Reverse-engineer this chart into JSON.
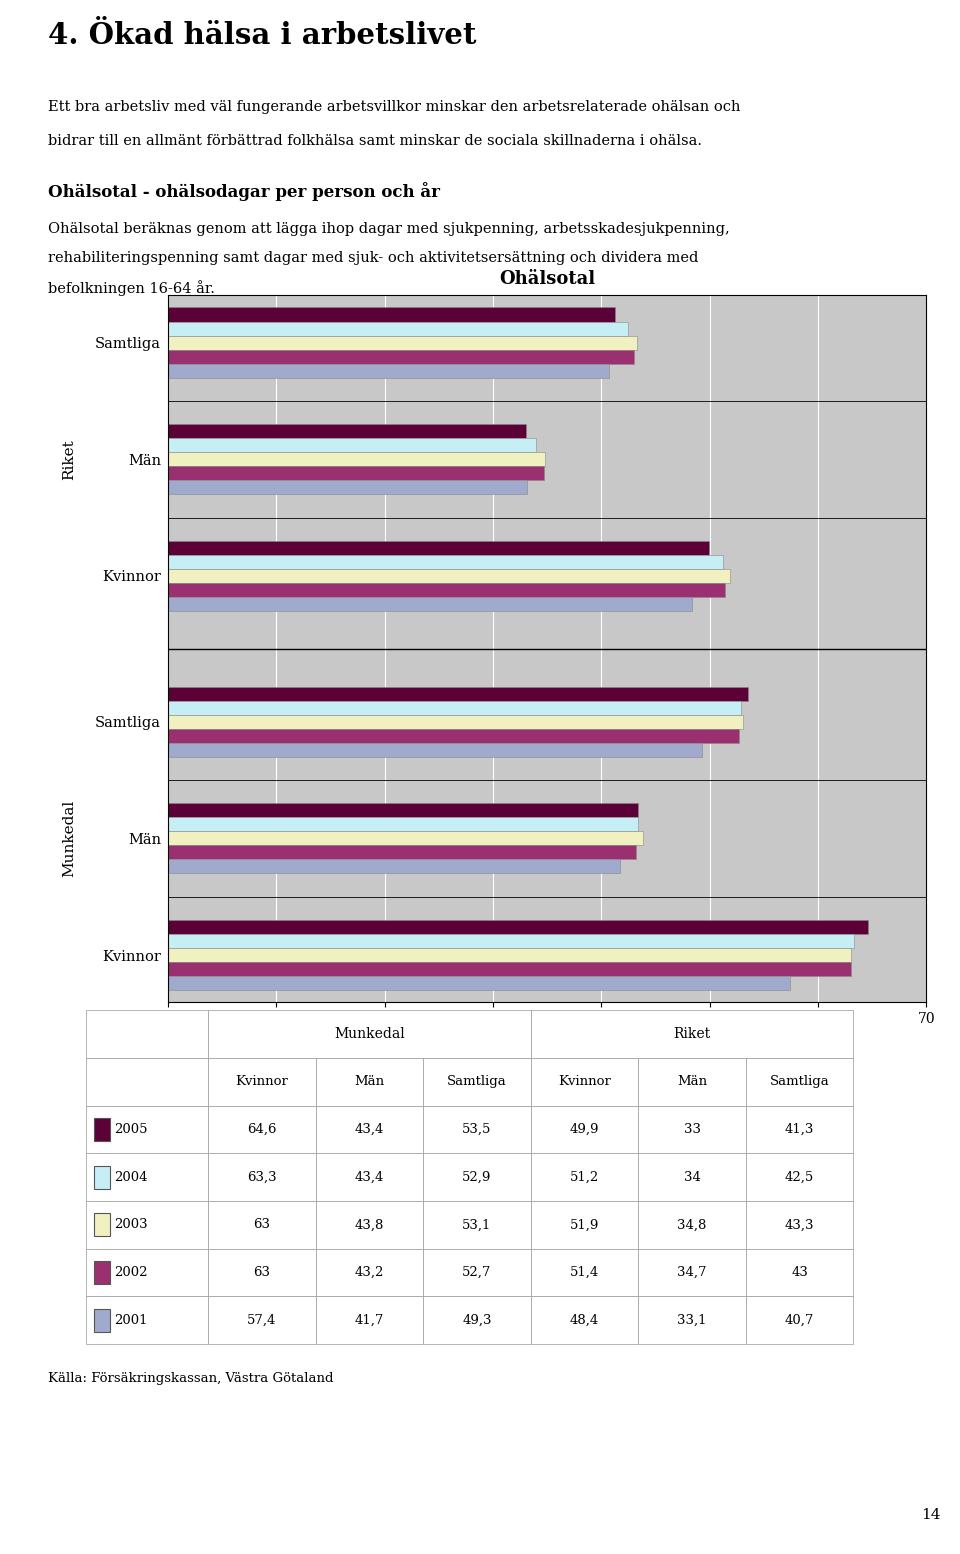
{
  "title": "4. Ökad hälsa i arbetslivet",
  "subtitle1": "Ett bra arbetsliv med väl fungerande arbetsvillkor minskar den arbetsrelaterade ohälsan och",
  "subtitle2": "bidrar till en allmänt förbättrad folkhälsa samt minskar de sociala skillnaderna i ohälsa.",
  "section_title": "Ohälsotal - ohälsodagar per person och år",
  "section_text1": "Ohälsotal beräknas genom att lägga ihop dagar med sjukpenning, arbetsskadesjukpenning,",
  "section_text2": "rehabiliteringspenning samt dagar med sjuk- och aktivitetsersättning och dividera med",
  "section_text3": "befolkningen 16-64 år.",
  "chart_title": "Ohälsotal",
  "years": [
    "2005",
    "2004",
    "2003",
    "2002",
    "2001"
  ],
  "color_2005": "#5C0038",
  "color_2004": "#C5EEF5",
  "color_2003": "#F0F0C0",
  "color_2002": "#9B3070",
  "color_2001": "#A0AACC",
  "data_Riket_Samtliga": [
    41.3,
    42.5,
    43.3,
    43.0,
    40.7
  ],
  "data_Riket_Man": [
    33.0,
    34.0,
    34.8,
    34.7,
    33.1
  ],
  "data_Riket_Kvinnor": [
    49.9,
    51.2,
    51.9,
    51.4,
    48.4
  ],
  "data_Munkedal_Samtliga": [
    53.5,
    52.9,
    53.1,
    52.7,
    49.3
  ],
  "data_Munkedal_Man": [
    43.4,
    43.4,
    43.8,
    43.2,
    41.7
  ],
  "data_Munkedal_Kvinnor": [
    64.6,
    63.3,
    63.0,
    63.0,
    57.4
  ],
  "table_rows": [
    [
      "2005",
      "64,6",
      "43,4",
      "53,5",
      "49,9",
      "33",
      "41,3"
    ],
    [
      "2004",
      "63,3",
      "43,4",
      "52,9",
      "51,2",
      "34",
      "42,5"
    ],
    [
      "2003",
      "63",
      "43,8",
      "53,1",
      "51,9",
      "34,8",
      "43,3"
    ],
    [
      "2002",
      "63",
      "43,2",
      "52,7",
      "51,4",
      "34,7",
      "43"
    ],
    [
      "2001",
      "57,4",
      "41,7",
      "49,3",
      "48,4",
      "33,1",
      "40,7"
    ]
  ],
  "source": "Källa: Försäkringskassan, Västra Götaland",
  "page": "14",
  "chart_bg": "#C8C8C8",
  "xlim_max": 70,
  "xticks": [
    0,
    10,
    20,
    30,
    40,
    50,
    60,
    70
  ]
}
